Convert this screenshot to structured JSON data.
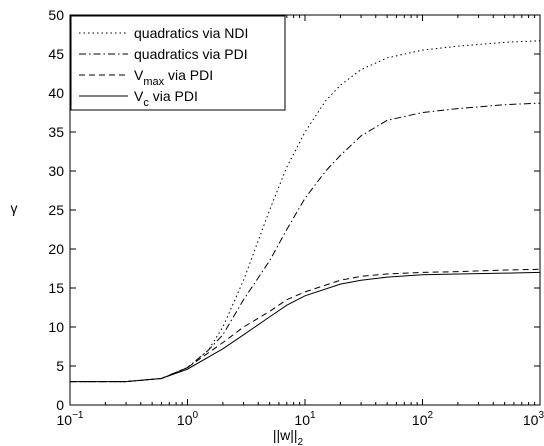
{
  "chart_data": {
    "type": "line",
    "title": "",
    "xlabel": "||w||",
    "xlabel_sub": "2",
    "ylabel": "γ",
    "xscale": "log",
    "xlim": [
      0.1,
      1000
    ],
    "ylim": [
      0,
      50
    ],
    "grid": false,
    "legend_position": "top-left",
    "x_ticks": [
      {
        "base": "10",
        "exp": "−1",
        "value": 0.1
      },
      {
        "base": "10",
        "exp": "0",
        "value": 1
      },
      {
        "base": "10",
        "exp": "1",
        "value": 10
      },
      {
        "base": "10",
        "exp": "2",
        "value": 100
      },
      {
        "base": "10",
        "exp": "3",
        "value": 1000
      }
    ],
    "y_ticks": [
      0,
      5,
      10,
      15,
      20,
      25,
      30,
      35,
      40,
      45,
      50
    ],
    "series": [
      {
        "name": "quadratics via NDI",
        "name_parts": [
          {
            "t": "quadratics via NDI",
            "sub": false
          }
        ],
        "dash": "1.5,3",
        "x": [
          0.1,
          0.3,
          0.6,
          1.0,
          1.5,
          2,
          3,
          5,
          7,
          10,
          15,
          20,
          30,
          50,
          100,
          200,
          500,
          1000
        ],
        "y": [
          3.0,
          3.0,
          3.4,
          4.8,
          7.0,
          10.0,
          16.0,
          25.0,
          30.5,
          35.0,
          39.0,
          41.0,
          43.0,
          44.5,
          45.5,
          46.0,
          46.5,
          46.7
        ]
      },
      {
        "name": "quadratics via PDI",
        "name_parts": [
          {
            "t": "quadratics via PDI",
            "sub": false
          }
        ],
        "dash": "7,3,1.5,3",
        "x": [
          0.1,
          0.3,
          0.6,
          1.0,
          1.5,
          2,
          3,
          5,
          7,
          10,
          15,
          20,
          30,
          50,
          100,
          200,
          500,
          1000
        ],
        "y": [
          3.0,
          3.0,
          3.4,
          4.8,
          7.0,
          9.0,
          13.5,
          18.5,
          22.5,
          26.5,
          30.0,
          32.0,
          34.5,
          36.5,
          37.5,
          38.0,
          38.5,
          38.7
        ]
      },
      {
        "name": "Vmax via PDI",
        "name_parts": [
          {
            "t": "V",
            "sub": false
          },
          {
            "t": "max",
            "sub": true
          },
          {
            "t": " via PDI",
            "sub": false
          }
        ],
        "dash": "6,4",
        "x": [
          0.1,
          0.3,
          0.6,
          1.0,
          2,
          3,
          5,
          7,
          10,
          20,
          30,
          50,
          100,
          200,
          500,
          1000
        ],
        "y": [
          3.0,
          3.0,
          3.4,
          4.8,
          8.0,
          10.0,
          12.0,
          13.5,
          14.5,
          16.0,
          16.5,
          16.8,
          17.0,
          17.1,
          17.3,
          17.4
        ]
      },
      {
        "name": "Vc via PDI",
        "name_parts": [
          {
            "t": "V",
            "sub": false
          },
          {
            "t": "c",
            "sub": true
          },
          {
            "t": " via PDI",
            "sub": false
          }
        ],
        "dash": "",
        "x": [
          0.1,
          0.3,
          0.6,
          1.0,
          2,
          3,
          5,
          7,
          10,
          20,
          30,
          50,
          100,
          200,
          500,
          1000
        ],
        "y": [
          3.0,
          3.0,
          3.4,
          4.6,
          7.2,
          9.0,
          11.3,
          12.8,
          14.0,
          15.5,
          16.0,
          16.4,
          16.7,
          16.8,
          16.9,
          17.0
        ]
      }
    ]
  }
}
